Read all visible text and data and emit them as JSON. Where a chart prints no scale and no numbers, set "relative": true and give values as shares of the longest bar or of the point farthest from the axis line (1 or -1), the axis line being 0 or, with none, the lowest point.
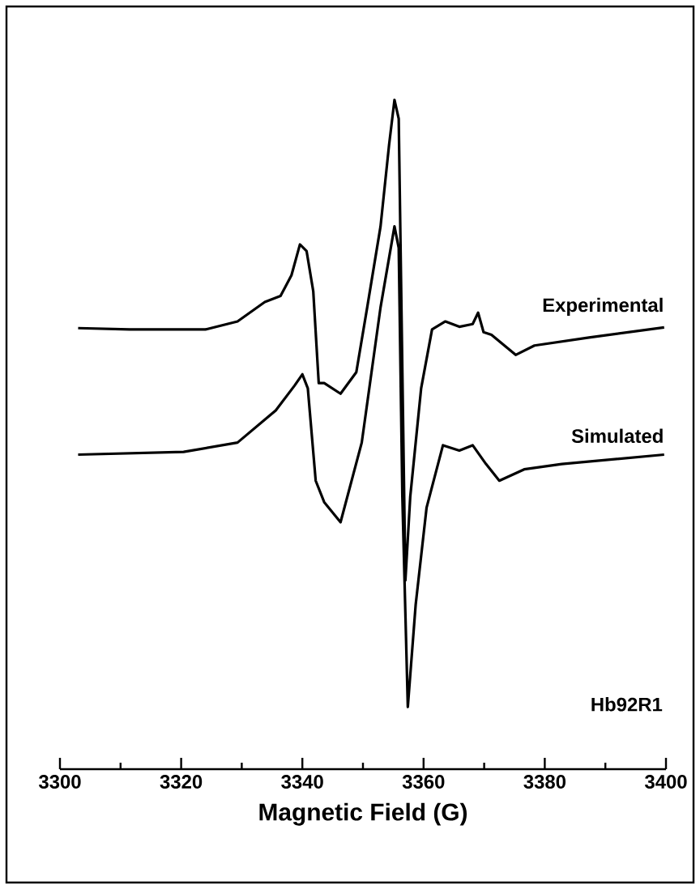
{
  "chart_data": {
    "type": "line",
    "relative": true,
    "xlabel": "Magnetic Field (G)",
    "xlim": [
      3300,
      3400
    ],
    "xticks": [
      3300,
      {
        "value": 3310,
        "label": null
      },
      3320,
      {
        "value": 3330,
        "label": null
      },
      3340,
      {
        "value": 3350,
        "label": null
      },
      3360,
      {
        "value": 3370,
        "label": null
      },
      3380,
      {
        "value": 3390,
        "label": null
      },
      3400
    ],
    "annotations": [
      "Hb92R1"
    ],
    "legend": false,
    "grid": false,
    "marker": "none",
    "line_style": "solid",
    "series": [
      {
        "name": "Experimental",
        "color": "#000000",
        "x": [
          3303.0,
          3311.5,
          3324.0,
          3329.3,
          3333.8,
          3336.4,
          3338.2,
          3339.6,
          3340.7,
          3341.8,
          3342.7,
          3343.6,
          3346.3,
          3348.9,
          3350.7,
          3352.9,
          3354.3,
          3355.2,
          3355.9,
          3357.0,
          3357.8,
          3359.6,
          3361.4,
          3363.6,
          3365.9,
          3368.1,
          3369.0,
          3369.9,
          3371.2,
          3375.2,
          3378.3,
          3387.3,
          3399.7
        ],
        "values": [
          0.659,
          0.657,
          0.657,
          0.669,
          0.698,
          0.707,
          0.738,
          0.784,
          0.774,
          0.714,
          0.577,
          0.577,
          0.561,
          0.593,
          0.69,
          0.811,
          0.932,
          1.0,
          0.972,
          0.282,
          0.407,
          0.569,
          0.657,
          0.669,
          0.661,
          0.665,
          0.682,
          0.653,
          0.649,
          0.619,
          0.633,
          0.645,
          0.66
        ]
      },
      {
        "name": "Simulated",
        "color": "#000000",
        "x": [
          3303.0,
          3320.4,
          3329.3,
          3335.6,
          3338.7,
          3340.0,
          3340.9,
          3342.2,
          3343.6,
          3346.3,
          3349.8,
          3352.9,
          3355.2,
          3355.9,
          3356.5,
          3357.4,
          3358.7,
          3360.5,
          3363.2,
          3365.9,
          3368.1,
          3370.3,
          3372.5,
          3376.6,
          3382.8,
          3399.7
        ],
        "values": [
          0.47,
          0.474,
          0.488,
          0.536,
          0.573,
          0.59,
          0.569,
          0.431,
          0.399,
          0.369,
          0.488,
          0.69,
          0.811,
          0.779,
          0.407,
          0.093,
          0.246,
          0.391,
          0.484,
          0.476,
          0.484,
          0.456,
          0.431,
          0.448,
          0.456,
          0.47
        ]
      }
    ]
  }
}
